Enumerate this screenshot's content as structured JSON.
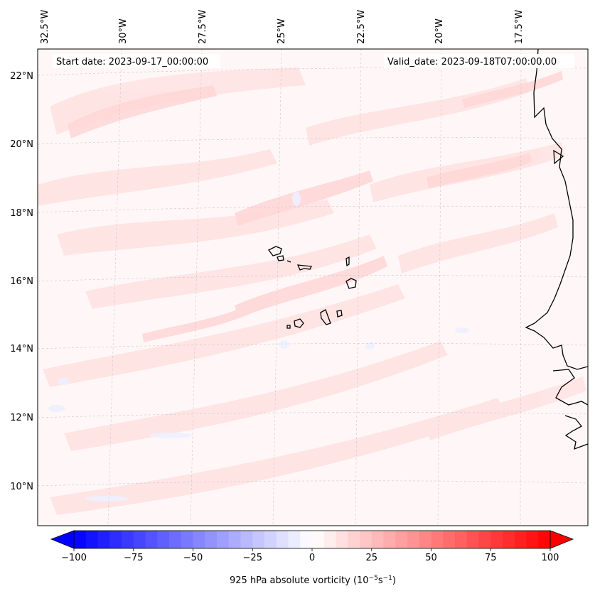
{
  "map": {
    "start_date": "Start date: 2023-09-17_00:00:00",
    "valid_date": "Valid_date: 2023-09-18T07:00:00.00",
    "lon_labels": [
      "32.5°W",
      "30°W",
      "27.5°W",
      "25°W",
      "22.5°W",
      "20°W",
      "17.5°W"
    ],
    "lat_labels": [
      "22°N",
      "20°N",
      "18°N",
      "16°N",
      "14°N",
      "12°N",
      "10°N"
    ],
    "field": "925 hPa absolute vorticity",
    "coast_color": "#000000",
    "gridline_color": "#bbbbbb"
  },
  "colorbar": {
    "label_prefix": "925 hPa absolute vorticity (10",
    "label_exp1": "−5",
    "label_mid": "s",
    "label_exp2": "−1",
    "label_suffix": ")",
    "ticks": [
      "−100",
      "−75",
      "−50",
      "−25",
      "0",
      "25",
      "50",
      "75",
      "100"
    ],
    "min": -100,
    "max": 100,
    "step": 5,
    "colors": {
      "min": "#0000ff",
      "mid": "#ffffff",
      "max": "#ff0000"
    }
  }
}
